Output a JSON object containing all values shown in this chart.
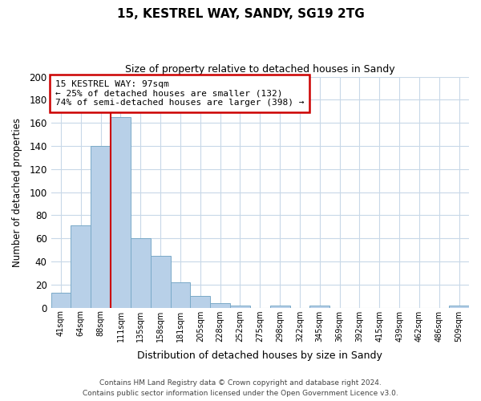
{
  "title": "15, KESTREL WAY, SANDY, SG19 2TG",
  "subtitle": "Size of property relative to detached houses in Sandy",
  "xlabel": "Distribution of detached houses by size in Sandy",
  "ylabel": "Number of detached properties",
  "bar_labels": [
    "41sqm",
    "64sqm",
    "88sqm",
    "111sqm",
    "135sqm",
    "158sqm",
    "181sqm",
    "205sqm",
    "228sqm",
    "252sqm",
    "275sqm",
    "298sqm",
    "322sqm",
    "345sqm",
    "369sqm",
    "392sqm",
    "415sqm",
    "439sqm",
    "462sqm",
    "486sqm",
    "509sqm"
  ],
  "bar_values": [
    13,
    71,
    140,
    165,
    60,
    45,
    22,
    10,
    4,
    2,
    0,
    2,
    0,
    2,
    0,
    0,
    0,
    0,
    0,
    0,
    2
  ],
  "bar_color": "#b8d0e8",
  "bar_edge_color": "#7aaac8",
  "vline_x_index": 2,
  "vline_color": "#cc0000",
  "annotation_title": "15 KESTREL WAY: 97sqm",
  "annotation_line1": "← 25% of detached houses are smaller (132)",
  "annotation_line2": "74% of semi-detached houses are larger (398) →",
  "annotation_box_color": "#ffffff",
  "annotation_box_edge": "#cc0000",
  "ylim": [
    0,
    200
  ],
  "yticks": [
    0,
    20,
    40,
    60,
    80,
    100,
    120,
    140,
    160,
    180,
    200
  ],
  "footer_line1": "Contains HM Land Registry data © Crown copyright and database right 2024.",
  "footer_line2": "Contains public sector information licensed under the Open Government Licence v3.0.",
  "background_color": "#ffffff",
  "grid_color": "#c8d8e8"
}
